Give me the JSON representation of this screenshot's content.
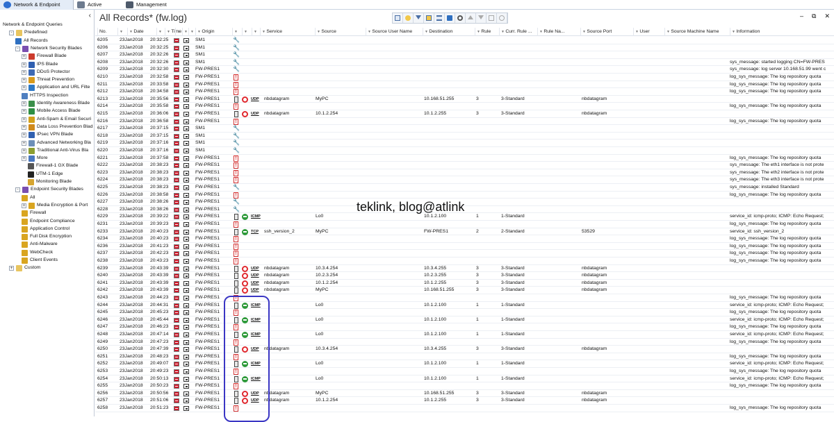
{
  "tabs": [
    {
      "label": "Network & Endpoint"
    },
    {
      "label": "Active"
    },
    {
      "label": "Management"
    }
  ],
  "tree": [
    {
      "label": "Network & Endpoint Queries",
      "exp": "",
      "icon": "",
      "color": ""
    },
    {
      "label": "Predefined",
      "exp": "-",
      "icon": "folder",
      "color": "#e8c560"
    },
    {
      "label": "All Records",
      "exp": "",
      "icon": "table",
      "color": "#2e6fc0"
    },
    {
      "label": "Network Security Blades",
      "exp": "-",
      "icon": "blades",
      "color": "#7a4fb0"
    },
    {
      "label": "Firewall Blade",
      "exp": "+",
      "icon": "firewall",
      "color": "#cc3b2c"
    },
    {
      "label": "IPS Blade",
      "exp": "+",
      "icon": "ips",
      "color": "#2f5fb0"
    },
    {
      "label": "DDoS Protector",
      "exp": "+",
      "icon": "ddos",
      "color": "#3e6ab5"
    },
    {
      "label": "Threat Prevention",
      "exp": "+",
      "icon": "threat",
      "color": "#d99b1c"
    },
    {
      "label": "Application and URL Filte",
      "exp": "+",
      "icon": "app",
      "color": "#2e79c6"
    },
    {
      "label": "HTTPS Inspection",
      "exp": "",
      "icon": "https",
      "color": "#4f7fc0"
    },
    {
      "label": "Identity Awareness Blade",
      "exp": "+",
      "icon": "identity",
      "color": "#3b8f4a"
    },
    {
      "label": "Mobile Access Blade",
      "exp": "+",
      "icon": "mobile",
      "color": "#2f8f44"
    },
    {
      "label": "Anti-Spam & Email Securi",
      "exp": "+",
      "icon": "antispam",
      "color": "#d4a11c"
    },
    {
      "label": "Data Loss Prevention Blad",
      "exp": "+",
      "icon": "dlp",
      "color": "#d08a1c"
    },
    {
      "label": "IPsec VPN Blade",
      "exp": "+",
      "icon": "vpn",
      "color": "#3060b0"
    },
    {
      "label": "Advanced Networking Bla",
      "exp": "+",
      "icon": "advnet",
      "color": "#6d8fb8"
    },
    {
      "label": "Traditional Anti-Virus Bla",
      "exp": "+",
      "icon": "av",
      "color": "#8c9e30"
    },
    {
      "label": "More",
      "exp": "+",
      "icon": "more",
      "color": "#4a78c0"
    },
    {
      "label": "Firewall-1 GX Blade",
      "exp": "",
      "icon": "gx",
      "color": "#555"
    },
    {
      "label": "UTM-1 Edge",
      "exp": "",
      "icon": "utm",
      "color": "#222"
    },
    {
      "label": "Monitoring Blade",
      "exp": "",
      "icon": "monitor",
      "color": "#d6a530"
    },
    {
      "label": "Endpoint Security Blades",
      "exp": "-",
      "icon": "endpoint",
      "color": "#7a4fb0"
    },
    {
      "label": "All",
      "exp": "",
      "icon": "all",
      "color": "#d9a520"
    },
    {
      "label": "Media Encryption & Port",
      "exp": "+",
      "icon": "media",
      "color": "#d9a520"
    },
    {
      "label": "Firewall",
      "exp": "",
      "icon": "epfw",
      "color": "#d9a520"
    },
    {
      "label": "Endpoint Compliance",
      "exp": "",
      "icon": "compliance",
      "color": "#d9a520"
    },
    {
      "label": "Application Control",
      "exp": "",
      "icon": "appctl",
      "color": "#d9a520"
    },
    {
      "label": "Full Disk Encryption",
      "exp": "",
      "icon": "fde",
      "color": "#d9a520"
    },
    {
      "label": "Anti-Malware",
      "exp": "",
      "icon": "antimalware",
      "color": "#d9a520"
    },
    {
      "label": "WebCheck",
      "exp": "",
      "icon": "webcheck",
      "color": "#d9a520"
    },
    {
      "label": "Client Events",
      "exp": "",
      "icon": "client",
      "color": "#d9a520"
    },
    {
      "label": "Custom",
      "exp": "+",
      "icon": "folder",
      "color": "#e8c560"
    }
  ],
  "main": {
    "title": "All Records* (fw.log)",
    "watermark": "teklink, blog@atlink"
  },
  "columns": [
    "No.",
    "Date",
    "Time",
    "Origin",
    "Service",
    "Source",
    "Source User Name",
    "Destination",
    "Rule",
    "Curr. Rule ...",
    "Rule Na...",
    "Source Port",
    "User",
    "Source Machine Name",
    "Information"
  ],
  "records": [
    {
      "no": "6205",
      "date": "23Jan2018",
      "time": "20:32:25",
      "origin": "SM1",
      "type": "wrench"
    },
    {
      "no": "6206",
      "date": "23Jan2018",
      "time": "20:32:25",
      "origin": "SM1",
      "type": "wrench"
    },
    {
      "no": "6207",
      "date": "23Jan2018",
      "time": "20:32:26",
      "origin": "SM1",
      "type": "wrench"
    },
    {
      "no": "6208",
      "date": "23Jan2018",
      "time": "20:32:26",
      "origin": "SM1",
      "type": "wrench",
      "info": "sys_message: started logging CN=FW-PRES"
    },
    {
      "no": "6209",
      "date": "23Jan2018",
      "time": "20:32:30",
      "origin": "FW-PRES1",
      "type": "wrench",
      "info": "sys_message: log server 10.168.51.99 went c"
    },
    {
      "no": "6210",
      "date": "23Jan2018",
      "time": "20:32:58",
      "origin": "FW-PRES1",
      "type": "alert",
      "info": "log_sys_message: The log repository quota"
    },
    {
      "no": "6211",
      "date": "23Jan2018",
      "time": "20:33:58",
      "origin": "FW-PRES1",
      "type": "alert",
      "info": "log_sys_message: The log repository quota"
    },
    {
      "no": "6212",
      "date": "23Jan2018",
      "time": "20:34:58",
      "origin": "FW-PRES1",
      "type": "alert",
      "info": "log_sys_message: The log repository quota"
    },
    {
      "no": "6213",
      "date": "23Jan2018",
      "time": "20:35:56",
      "origin": "FW-PRES1",
      "type": "drop",
      "proto": "UDP",
      "service": "nbdatagram",
      "source": "MyPC",
      "dest": "10.168.51.255",
      "rule": "3",
      "curr": "3-Standard",
      "sport": "nbdatagram"
    },
    {
      "no": "6214",
      "date": "23Jan2018",
      "time": "20:35:58",
      "origin": "FW-PRES1",
      "type": "alert",
      "info": "log_sys_message: The log repository quota"
    },
    {
      "no": "6215",
      "date": "23Jan2018",
      "time": "20:36:06",
      "origin": "FW-PRES1",
      "type": "drop",
      "proto": "UDP",
      "service": "nbdatagram",
      "source": "10.1.2.254",
      "dest": "10.1.2.255",
      "rule": "3",
      "curr": "3-Standard",
      "sport": "nbdatagram"
    },
    {
      "no": "6216",
      "date": "23Jan2018",
      "time": "20:36:58",
      "origin": "FW-PRES1",
      "type": "alert",
      "info": "log_sys_message: The log repository quota"
    },
    {
      "no": "6217",
      "date": "23Jan2018",
      "time": "20:37:15",
      "origin": "SM1",
      "type": "wrench"
    },
    {
      "no": "6218",
      "date": "23Jan2018",
      "time": "20:37:15",
      "origin": "SM1",
      "type": "wrench"
    },
    {
      "no": "6219",
      "date": "23Jan2018",
      "time": "20:37:16",
      "origin": "SM1",
      "type": "wrench"
    },
    {
      "no": "6220",
      "date": "23Jan2018",
      "time": "20:37:16",
      "origin": "SM1",
      "type": "wrench"
    },
    {
      "no": "6221",
      "date": "23Jan2018",
      "time": "20:37:58",
      "origin": "FW-PRES1",
      "type": "alert",
      "info": "log_sys_message: The log repository quota"
    },
    {
      "no": "6222",
      "date": "23Jan2018",
      "time": "20:38:23",
      "origin": "FW-PRES1",
      "type": "alert",
      "info": "sys_message: The eth1 interface is not prote"
    },
    {
      "no": "6223",
      "date": "23Jan2018",
      "time": "20:38:23",
      "origin": "FW-PRES1",
      "type": "alert",
      "info": "sys_message: The eth2 interface is not prote"
    },
    {
      "no": "6224",
      "date": "23Jan2018",
      "time": "20:38:23",
      "origin": "FW-PRES1",
      "type": "alert",
      "info": "sys_message: The eth3 interface is not prote"
    },
    {
      "no": "6225",
      "date": "23Jan2018",
      "time": "20:38:23",
      "origin": "FW-PRES1",
      "type": "wrench",
      "info": "sys_message: installed Standard"
    },
    {
      "no": "6226",
      "date": "23Jan2018",
      "time": "20:38:58",
      "origin": "FW-PRES1",
      "type": "alert",
      "info": "log_sys_message: The log repository quota"
    },
    {
      "no": "6227",
      "date": "23Jan2018",
      "time": "20:38:26",
      "origin": "FW-PRES1",
      "type": "wrench"
    },
    {
      "no": "6228",
      "date": "23Jan2018",
      "time": "20:38:26",
      "origin": "FW-PRES1",
      "type": "wrench"
    },
    {
      "no": "6229",
      "date": "23Jan2018",
      "time": "20:39:22",
      "origin": "FW-PRES1",
      "type": "accept",
      "proto": "ICMP",
      "source": "Lo0",
      "dest": "10.1.2.100",
      "rule": "1",
      "curr": "1-Standard",
      "info": "service_id: icmp-proto; ICMP: Echo Request;"
    },
    {
      "no": "6231",
      "date": "23Jan2018",
      "time": "20:39:23",
      "origin": "FW-PRES1",
      "type": "alert",
      "info": "log_sys_message: The log repository quota"
    },
    {
      "no": "6233",
      "date": "23Jan2018",
      "time": "20:40:23",
      "origin": "FW-PRES1",
      "type": "accept",
      "proto": "TCP",
      "service": "ssh_version_2",
      "source": "MyPC",
      "dest": "FW-PRES1",
      "rule": "2",
      "curr": "2-Standard",
      "sport": "53529",
      "info": "service_id: ssh_version_2"
    },
    {
      "no": "6234",
      "date": "23Jan2018",
      "time": "20:40:23",
      "origin": "FW-PRES1",
      "type": "alert",
      "info": "log_sys_message: The log repository quota"
    },
    {
      "no": "6236",
      "date": "23Jan2018",
      "time": "20:41:23",
      "origin": "FW-PRES1",
      "type": "alert",
      "info": "log_sys_message: The log repository quota"
    },
    {
      "no": "6237",
      "date": "23Jan2018",
      "time": "20:42:23",
      "origin": "FW-PRES1",
      "type": "alert",
      "info": "log_sys_message: The log repository quota"
    },
    {
      "no": "6238",
      "date": "23Jan2018",
      "time": "20:43:23",
      "origin": "FW-PRES1",
      "type": "alert",
      "info": "log_sys_message: The log repository quota"
    },
    {
      "no": "6239",
      "date": "23Jan2018",
      "time": "20:43:39",
      "origin": "FW-PRES1",
      "type": "drop",
      "proto": "UDP",
      "service": "nbdatagram",
      "source": "10.3.4.254",
      "dest": "10.3.4.255",
      "rule": "3",
      "curr": "3-Standard",
      "sport": "nbdatagram"
    },
    {
      "no": "6240",
      "date": "23Jan2018",
      "time": "20:43:39",
      "origin": "FW-PRES1",
      "type": "drop",
      "proto": "UDP",
      "service": "nbdatagram",
      "source": "10.2.3.254",
      "dest": "10.2.3.255",
      "rule": "3",
      "curr": "3-Standard",
      "sport": "nbdatagram"
    },
    {
      "no": "6241",
      "date": "23Jan2018",
      "time": "20:43:39",
      "origin": "FW-PRES1",
      "type": "drop",
      "proto": "UDP",
      "service": "nbdatagram",
      "source": "10.1.2.254",
      "dest": "10.1.2.255",
      "rule": "3",
      "curr": "3-Standard",
      "sport": "nbdatagram"
    },
    {
      "no": "6242",
      "date": "23Jan2018",
      "time": "20:43:39",
      "origin": "FW-PRES1",
      "type": "drop",
      "proto": "UDP",
      "service": "nbdatagram",
      "source": "MyPC",
      "dest": "10.168.51.255",
      "rule": "3",
      "curr": "3-Standard",
      "sport": "nbdatagram"
    },
    {
      "no": "6243",
      "date": "23Jan2018",
      "time": "20:44:23",
      "origin": "FW-PRES1",
      "type": "alert",
      "info": "log_sys_message: The log repository quota"
    },
    {
      "no": "6244",
      "date": "23Jan2018",
      "time": "20:44:31",
      "origin": "FW-PRES1",
      "type": "accept",
      "proto": "ICMP",
      "source": "Lo0",
      "dest": "10.1.2.100",
      "rule": "1",
      "curr": "1-Standard",
      "info": "service_id: icmp-proto; ICMP: Echo Request;"
    },
    {
      "no": "6245",
      "date": "23Jan2018",
      "time": "20:45:23",
      "origin": "FW-PRES1",
      "type": "alert",
      "info": "log_sys_message: The log repository quota"
    },
    {
      "no": "6246",
      "date": "23Jan2018",
      "time": "20:45:44",
      "origin": "FW-PRES1",
      "type": "accept",
      "proto": "ICMP",
      "source": "Lo0",
      "dest": "10.1.2.100",
      "rule": "1",
      "curr": "1-Standard",
      "info": "service_id: icmp-proto; ICMP: Echo Request;"
    },
    {
      "no": "6247",
      "date": "23Jan2018",
      "time": "20:46:23",
      "origin": "FW-PRES1",
      "type": "alert",
      "info": "log_sys_message: The log repository quota"
    },
    {
      "no": "6248",
      "date": "23Jan2018",
      "time": "20:47:14",
      "origin": "FW-PRES1",
      "type": "accept",
      "proto": "ICMP",
      "source": "Lo0",
      "dest": "10.1.2.100",
      "rule": "1",
      "curr": "1-Standard",
      "info": "service_id: icmp-proto; ICMP: Echo Request;"
    },
    {
      "no": "6249",
      "date": "23Jan2018",
      "time": "20:47:23",
      "origin": "FW-PRES1",
      "type": "alert",
      "info": "log_sys_message: The log repository quota"
    },
    {
      "no": "6250",
      "date": "23Jan2018",
      "time": "20:47:39",
      "origin": "FW-PRES1",
      "type": "drop",
      "proto": "UDP",
      "service": "nbdatagram",
      "source": "10.3.4.254",
      "dest": "10.3.4.255",
      "rule": "3",
      "curr": "3-Standard",
      "sport": "nbdatagram"
    },
    {
      "no": "6251",
      "date": "23Jan2018",
      "time": "20:48:23",
      "origin": "FW-PRES1",
      "type": "alert",
      "info": "log_sys_message: The log repository quota"
    },
    {
      "no": "6252",
      "date": "23Jan2018",
      "time": "20:49:07",
      "origin": "FW-PRES1",
      "type": "accept",
      "proto": "ICMP",
      "source": "Lo0",
      "dest": "10.1.2.100",
      "rule": "1",
      "curr": "1-Standard",
      "info": "service_id: icmp-proto; ICMP: Echo Request;"
    },
    {
      "no": "6253",
      "date": "23Jan2018",
      "time": "20:49:23",
      "origin": "FW-PRES1",
      "type": "alert",
      "info": "log_sys_message: The log repository quota"
    },
    {
      "no": "6254",
      "date": "23Jan2018",
      "time": "20:50:13",
      "origin": "FW-PRES1",
      "type": "accept",
      "proto": "ICMP",
      "source": "Lo0",
      "dest": "10.1.2.100",
      "rule": "1",
      "curr": "1-Standard",
      "info": "service_id: icmp-proto; ICMP: Echo Request;"
    },
    {
      "no": "6255",
      "date": "23Jan2018",
      "time": "20:50:23",
      "origin": "FW-PRES1",
      "type": "alert",
      "info": "log_sys_message: The log repository quota"
    },
    {
      "no": "6256",
      "date": "23Jan2018",
      "time": "20:50:56",
      "origin": "FW-PRES1",
      "type": "drop",
      "proto": "UDP",
      "service": "nbdatagram",
      "source": "MyPC",
      "dest": "10.168.51.255",
      "rule": "3",
      "curr": "3-Standard",
      "sport": "nbdatagram"
    },
    {
      "no": "6257",
      "date": "23Jan2018",
      "time": "20:51:06",
      "origin": "FW-PRES1",
      "type": "drop",
      "proto": "UDP",
      "service": "nbdatagram",
      "source": "10.1.2.254",
      "dest": "10.1.2.255",
      "rule": "3",
      "curr": "3-Standard",
      "sport": "nbdatagram"
    },
    {
      "no": "6258",
      "date": "23Jan2018",
      "time": "20:51:23",
      "origin": "FW-PRES1",
      "type": "alert",
      "info": "log_sys_message: The log repository quota"
    }
  ]
}
